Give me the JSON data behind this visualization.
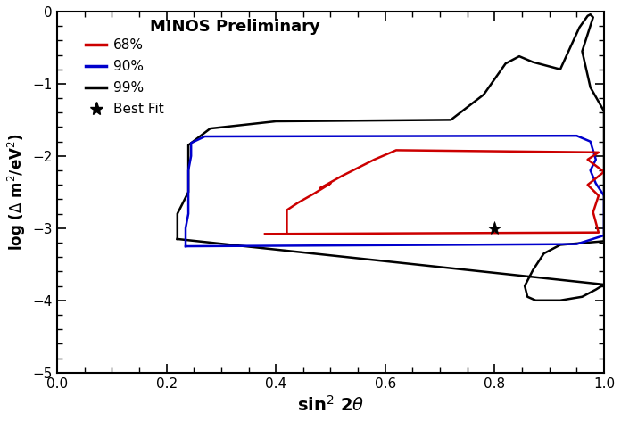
{
  "title": "MINOS Preliminary",
  "xlabel": "sin$^2$ 2$\\theta$",
  "ylabel": "log ($\\Delta$ m$^2$/eV$^2$)",
  "xlim": [
    0,
    1
  ],
  "ylim": [
    -5,
    0
  ],
  "xticks": [
    0,
    0.2,
    0.4,
    0.6,
    0.8,
    1.0
  ],
  "yticks": [
    -5,
    -4,
    -3,
    -2,
    -1,
    0
  ],
  "best_fit": [
    0.8,
    -3.0
  ],
  "background_color": "#ffffff",
  "contour_68_color": "#cc0000",
  "contour_90_color": "#0000cc",
  "contour_99_color": "#000000"
}
